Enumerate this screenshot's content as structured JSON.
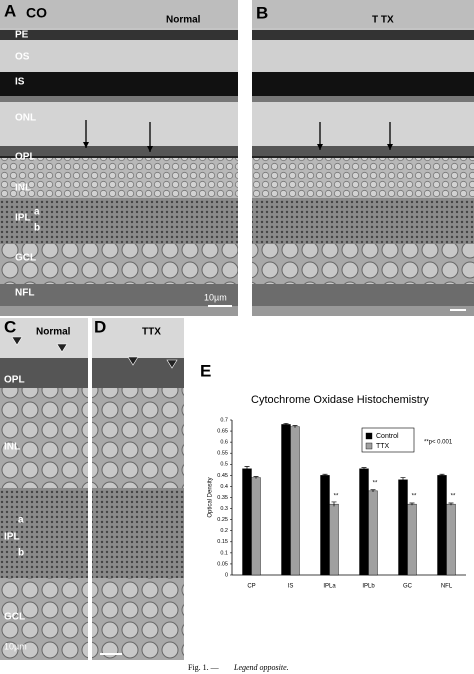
{
  "panels": [
    {
      "letter": "A",
      "title": "CO",
      "condition": "Normal",
      "layers": [
        "PE",
        "OS",
        "IS",
        "ONL",
        "OPL",
        "INL",
        "IPL",
        "a",
        "b",
        "GCL",
        "NFL"
      ],
      "scale_bar": "10µm"
    },
    {
      "letter": "B",
      "condition": "T TX"
    },
    {
      "letter": "C",
      "condition": "Normal",
      "layers": [
        "OPL",
        "INL",
        "IPL",
        "a",
        "b",
        "GCL"
      ],
      "scale_bar": "10µm"
    },
    {
      "letter": "D",
      "condition": "TTX"
    }
  ],
  "chart_data": {
    "type": "bar",
    "letter": "E",
    "title": "Cytochrome Oxidase Histochemistry",
    "y_label": "Optical Density",
    "note": "**p< 0.001",
    "categories": [
      "CP",
      "IS",
      "IPLa",
      "IPLb",
      "GC",
      "NFL"
    ],
    "series": [
      {
        "name": "Control",
        "color": "#000000",
        "values": [
          0.48,
          0.68,
          0.45,
          0.48,
          0.43,
          0.45
        ],
        "errors": [
          0.01,
          0.005,
          0.005,
          0.005,
          0.01,
          0.005
        ]
      },
      {
        "name": "TTX",
        "color": "#a0a0a0",
        "values": [
          0.44,
          0.67,
          0.32,
          0.38,
          0.32,
          0.32
        ],
        "errors": [
          0.005,
          0.005,
          0.01,
          0.005,
          0.005,
          0.005
        ],
        "markers": [
          null,
          null,
          "**",
          "**",
          "**",
          "**"
        ]
      }
    ],
    "ylim": [
      0,
      0.7
    ],
    "yticks": [
      0,
      0.05,
      0.1,
      0.15,
      0.2,
      0.25,
      0.3,
      0.35,
      0.4,
      0.45,
      0.5,
      0.55,
      0.6,
      0.65,
      0.7
    ],
    "grid": false
  },
  "caption": {
    "prefix": "Fig. 1. —",
    "text": "Legend opposite."
  }
}
